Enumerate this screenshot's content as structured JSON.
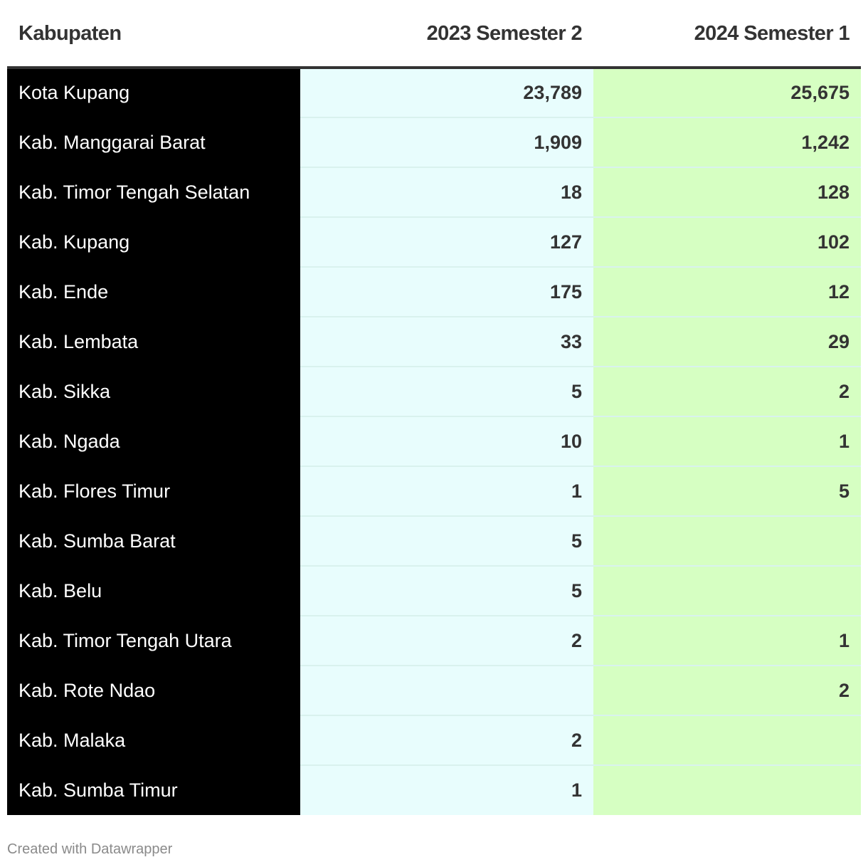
{
  "chart_data": {
    "type": "table",
    "columns": [
      "Kabupaten",
      "2023 Semester 2",
      "2024 Semester 1"
    ],
    "rows": [
      {
        "name": "Kota Kupang",
        "v2023s2": "23,789",
        "v2024s1": "25,675"
      },
      {
        "name": "Kab. Manggarai Barat",
        "v2023s2": "1,909",
        "v2024s1": "1,242"
      },
      {
        "name": "Kab. Timor Tengah Selatan",
        "v2023s2": "18",
        "v2024s1": "128"
      },
      {
        "name": "Kab. Kupang",
        "v2023s2": "127",
        "v2024s1": "102"
      },
      {
        "name": "Kab. Ende",
        "v2023s2": "175",
        "v2024s1": "12"
      },
      {
        "name": "Kab. Lembata",
        "v2023s2": "33",
        "v2024s1": "29"
      },
      {
        "name": "Kab. Sikka",
        "v2023s2": "5",
        "v2024s1": "2"
      },
      {
        "name": "Kab. Ngada",
        "v2023s2": "10",
        "v2024s1": "1"
      },
      {
        "name": "Kab. Flores Timur",
        "v2023s2": "1",
        "v2024s1": "5"
      },
      {
        "name": "Kab. Sumba Barat",
        "v2023s2": "5",
        "v2024s1": ""
      },
      {
        "name": "Kab. Belu",
        "v2023s2": "5",
        "v2024s1": ""
      },
      {
        "name": "Kab. Timor Tengah Utara",
        "v2023s2": "2",
        "v2024s1": "1"
      },
      {
        "name": "Kab. Rote Ndao",
        "v2023s2": "",
        "v2024s1": "2"
      },
      {
        "name": "Kab. Malaka",
        "v2023s2": "2",
        "v2024s1": ""
      },
      {
        "name": "Kab. Sumba Timur",
        "v2023s2": "1",
        "v2024s1": ""
      }
    ],
    "colors": {
      "name_column": "#000000",
      "col_2023s2": "#e8fdfd",
      "col_2024s1": "#d6ffc2"
    }
  },
  "footer": {
    "credit": "Created with Datawrapper"
  }
}
